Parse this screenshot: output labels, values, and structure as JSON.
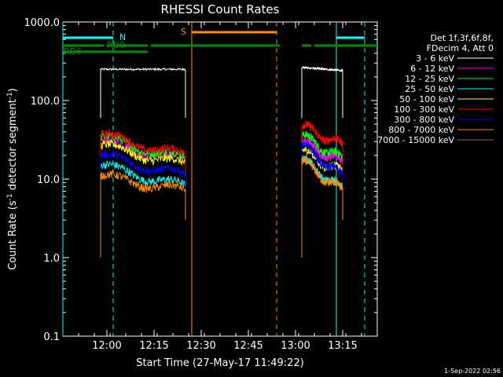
{
  "chart_data": {
    "type": "line",
    "title": "RHESSI Count Rates",
    "xlabel": "Start Time (27-May-17 11:49:22)",
    "ylabel_main": "Count Rate (s",
    "ylabel_sup": "-1",
    "ylabel_mid": " detector segment",
    "ylabel_sup2": "-1",
    "ylabel_end": ")",
    "y_scale": "log",
    "ylim": [
      0.1,
      1000
    ],
    "xlim": [
      "11:46",
      "13:26"
    ],
    "x_ticks": [
      "12:00",
      "12:15",
      "12:30",
      "12:45",
      "13:00",
      "13:15"
    ],
    "y_ticks": [
      "0.1",
      "1.0",
      "10.0",
      "100.0",
      "1000.0"
    ],
    "legend_header": [
      "Det 1f,3f,6f,8f,",
      "FDecim 4, Att 0"
    ],
    "grid": false,
    "series": [
      {
        "name": "3 - 6 keV",
        "color": "#ffffff",
        "segments": [
          [
            "11:58",
            "12:25",
            250,
            250
          ],
          [
            "13:02",
            "13:15",
            265,
            240
          ]
        ]
      },
      {
        "name": "6 - 12 keV",
        "color": "#ff00ff",
        "segments": [
          [
            "11:58",
            "12:25",
            30,
            17
          ],
          [
            "13:02",
            "13:15",
            30,
            16
          ]
        ]
      },
      {
        "name": "12 - 25 keV",
        "color": "#00ff00",
        "segments": [
          [
            "11:58",
            "12:25",
            34,
            18
          ],
          [
            "13:02",
            "13:15",
            36,
            18
          ]
        ]
      },
      {
        "name": "25 - 50 keV",
        "color": "#00ffff",
        "segments": [
          [
            "11:58",
            "12:25",
            15,
            8
          ],
          [
            "13:02",
            "13:15",
            18,
            7.5
          ]
        ]
      },
      {
        "name": "50 - 100 keV",
        "color": "#ffff00",
        "segments": [
          [
            "11:58",
            "12:25",
            27,
            15
          ],
          [
            "13:02",
            "13:15",
            23,
            12
          ]
        ]
      },
      {
        "name": "100 - 300 keV",
        "color": "#ff0000",
        "segments": [
          [
            "11:58",
            "12:25",
            37,
            20
          ],
          [
            "13:02",
            "13:15",
            48,
            27
          ]
        ]
      },
      {
        "name": "300 - 800 keV",
        "color": "#0000ff",
        "segments": [
          [
            "11:58",
            "12:25",
            20,
            11
          ],
          [
            "13:02",
            "13:15",
            27,
            11
          ]
        ]
      },
      {
        "name": "800 - 7000 keV",
        "color": "#ff8c00",
        "segments": [
          [
            "11:58",
            "12:25",
            11,
            7
          ],
          [
            "13:02",
            "13:15",
            17,
            7
          ]
        ]
      },
      {
        "name": "7000 - 15000 keV",
        "color": "#8b6b00",
        "segments": []
      }
    ],
    "annotations": {
      "N": {
        "label": "N",
        "color": "#00ffff",
        "spans": [
          [
            "11:46",
            "12:02"
          ],
          [
            "13:13",
            "13:22"
          ]
        ]
      },
      "RD0": {
        "label": "RD0",
        "color": "#008c00"
      },
      "RD6": {
        "label": "RD6",
        "color": "#008c00"
      },
      "S": {
        "label": "S",
        "color": "#ff8c00",
        "span": [
          "12:27",
          "12:54"
        ]
      },
      "attenuator_bars": [
        [
          "11:46",
          "11:59"
        ],
        [
          "12:00",
          "12:13"
        ],
        [
          "12:14",
          "12:55"
        ],
        [
          "13:02",
          "13:05"
        ],
        [
          "13:06",
          "13:26"
        ]
      ],
      "vlines_cyan_solid": [
        "11:46",
        "13:13"
      ],
      "vlines_cyan_dashed": [
        "12:02",
        "13:22"
      ],
      "vlines_orange_solid": [
        "12:27"
      ],
      "vlines_orange_dashed": [
        "12:54"
      ]
    }
  },
  "footer": {
    "timestamp": "1-Sep-2022 02:56"
  }
}
